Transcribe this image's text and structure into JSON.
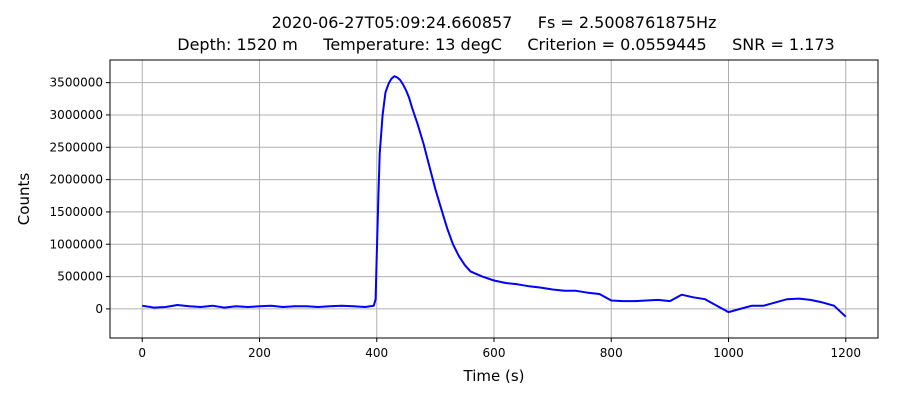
{
  "chart_data": {
    "type": "line",
    "title_line1": "2020-06-27T05:09:24.660857     Fs = 2.5008761875Hz",
    "title_line2": "Depth: 1520 m     Temperature: 13 degC     Criterion = 0.0559445     SNR = 1.173",
    "xlabel": "Time (s)",
    "ylabel": "Counts",
    "xlim": [
      -55,
      1255
    ],
    "ylim": [
      -450000,
      3850000
    ],
    "xticks": [
      0,
      200,
      400,
      600,
      800,
      1000,
      1200
    ],
    "yticks": [
      0,
      500000,
      1000000,
      1500000,
      2000000,
      2500000,
      3000000,
      3500000
    ],
    "x_tick_labels": [
      "0",
      "200",
      "400",
      "600",
      "800",
      "1000",
      "1200"
    ],
    "y_tick_labels": [
      "0",
      "500000",
      "1000000",
      "1500000",
      "2000000",
      "2500000",
      "3000000",
      "3500000"
    ],
    "grid": true,
    "series_color": "#0000ff",
    "series": [
      {
        "x": [
          0,
          20,
          40,
          60,
          80,
          100,
          120,
          140,
          160,
          180,
          200,
          220,
          240,
          260,
          280,
          300,
          320,
          340,
          360,
          380,
          395,
          398,
          400,
          403,
          405,
          408,
          410,
          415,
          420,
          425,
          430,
          435,
          440,
          445,
          450,
          455,
          460,
          470,
          480,
          490,
          500,
          510,
          520,
          530,
          540,
          550,
          560,
          580,
          600,
          620,
          640,
          660,
          680,
          700,
          720,
          740,
          760,
          780,
          800,
          820,
          840,
          860,
          880,
          900,
          920,
          940,
          960,
          980,
          990,
          1000,
          1020,
          1040,
          1060,
          1080,
          1100,
          1120,
          1140,
          1160,
          1180,
          1200
        ],
        "y": [
          50000,
          20000,
          30000,
          60000,
          40000,
          30000,
          50000,
          20000,
          40000,
          30000,
          40000,
          50000,
          30000,
          40000,
          40000,
          30000,
          40000,
          50000,
          40000,
          30000,
          50000,
          150000,
          800000,
          1800000,
          2400000,
          2750000,
          3000000,
          3350000,
          3480000,
          3560000,
          3600000,
          3580000,
          3540000,
          3470000,
          3380000,
          3270000,
          3120000,
          2850000,
          2550000,
          2200000,
          1850000,
          1550000,
          1250000,
          1000000,
          820000,
          680000,
          580000,
          500000,
          440000,
          400000,
          380000,
          350000,
          330000,
          300000,
          280000,
          280000,
          250000,
          230000,
          130000,
          120000,
          120000,
          130000,
          140000,
          120000,
          220000,
          180000,
          150000,
          50000,
          0,
          -50000,
          0,
          50000,
          50000,
          100000,
          150000,
          160000,
          140000,
          100000,
          50000,
          -120000
        ]
      }
    ]
  }
}
